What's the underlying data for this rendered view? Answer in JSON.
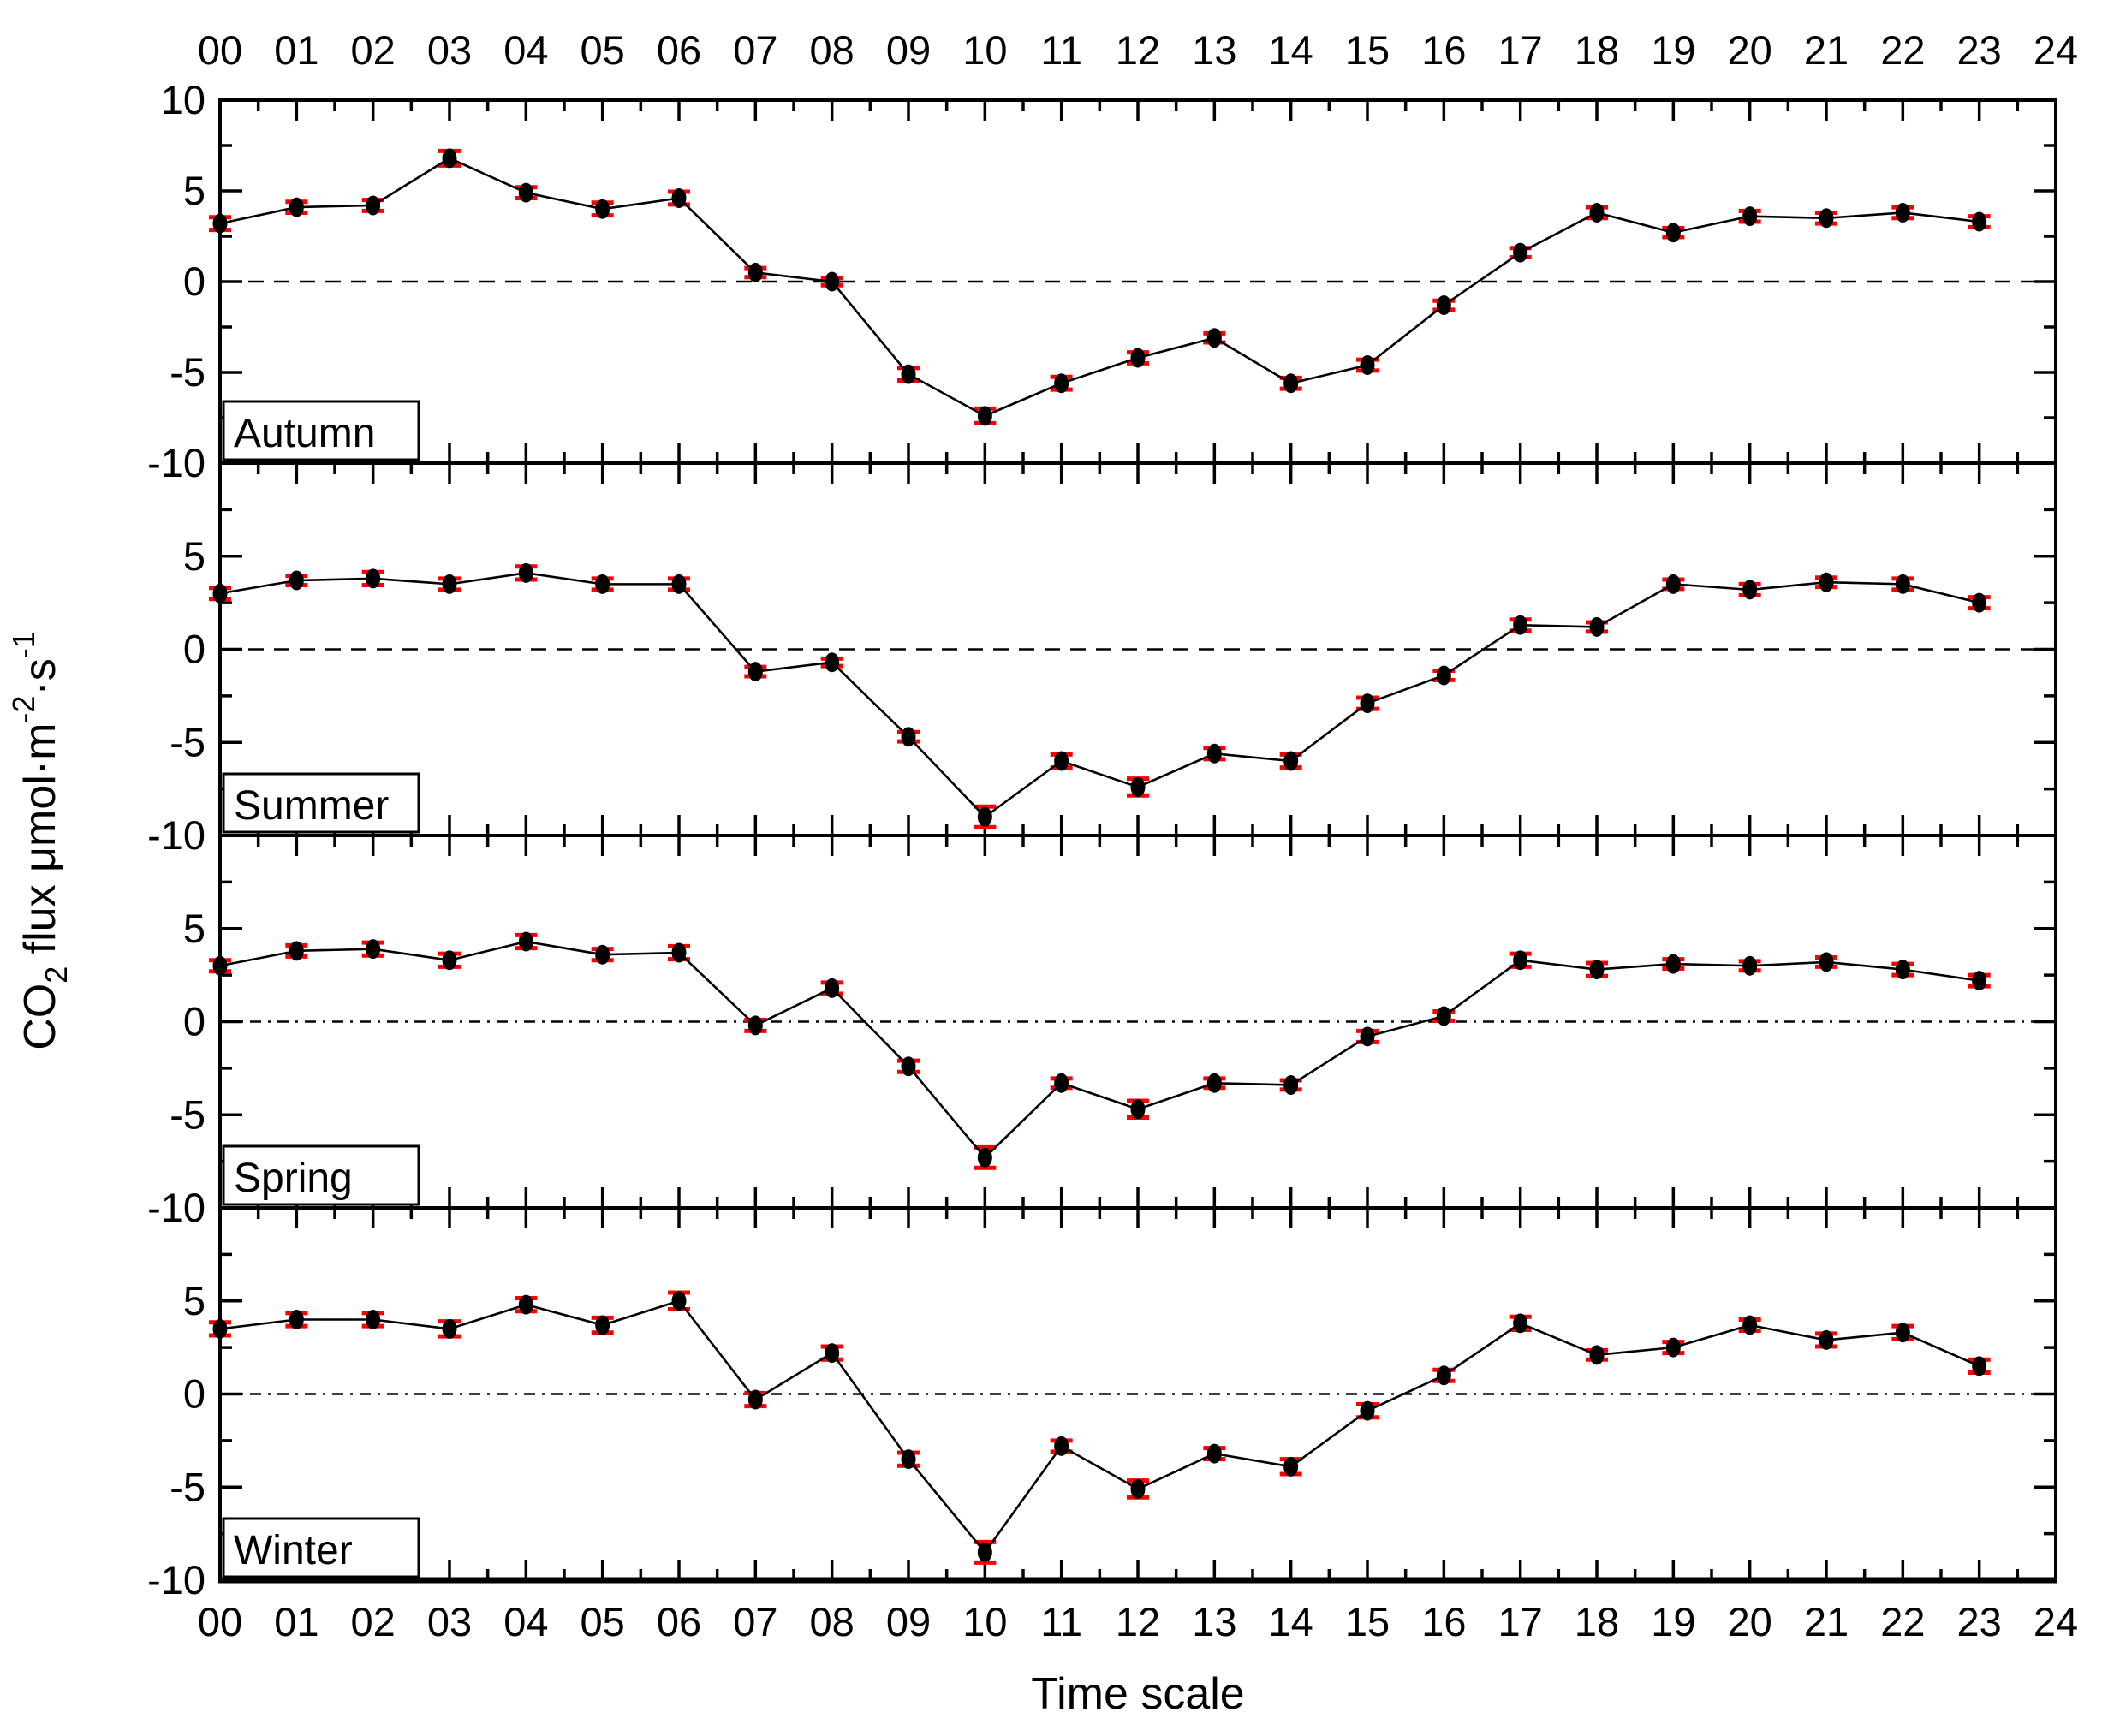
{
  "figure": {
    "x_axis_title": "Time scale",
    "y_axis_title": "CO2 flux μmol·m-2·s-1",
    "y_axis_title_parts": [
      {
        "text": "CO",
        "script": "none"
      },
      {
        "text": "2",
        "script": "sub"
      },
      {
        "text": " flux μmol·m",
        "script": "none"
      },
      {
        "text": "-2",
        "script": "sup"
      },
      {
        "text": "·s",
        "script": "none"
      },
      {
        "text": "-1",
        "script": "sup"
      }
    ],
    "hour_labels": [
      "00",
      "01",
      "02",
      "03",
      "04",
      "05",
      "06",
      "07",
      "08",
      "09",
      "10",
      "11",
      "12",
      "13",
      "14",
      "15",
      "16",
      "17",
      "18",
      "19",
      "20",
      "21",
      "22",
      "23",
      "24"
    ],
    "y_major_tick_labels": [
      "10",
      "5",
      "0",
      "-5",
      "-10"
    ],
    "colors": {
      "line": "#000000",
      "marker": "#000000",
      "error_bar": "#ff0000",
      "frame": "#000000",
      "background": "#ffffff",
      "label_box_fill": "#ffffff"
    }
  },
  "chart_data": [
    {
      "type": "line",
      "name": "Autumn",
      "x": [
        0,
        1,
        2,
        3,
        4,
        5,
        6,
        7,
        8,
        9,
        10,
        11,
        12,
        13,
        14,
        15,
        16,
        17,
        18,
        19,
        20,
        21,
        22,
        23
      ],
      "values": [
        3.2,
        4.1,
        4.2,
        6.8,
        4.9,
        4.0,
        4.6,
        0.5,
        0.0,
        -5.1,
        -7.4,
        -5.6,
        -4.2,
        -3.1,
        -5.6,
        -4.6,
        -1.3,
        1.6,
        3.8,
        2.7,
        3.6,
        3.5,
        3.8,
        3.3
      ],
      "errors": [
        0.35,
        0.3,
        0.3,
        0.4,
        0.3,
        0.35,
        0.35,
        0.25,
        0.2,
        0.35,
        0.4,
        0.35,
        0.3,
        0.25,
        0.3,
        0.3,
        0.25,
        0.25,
        0.3,
        0.25,
        0.3,
        0.3,
        0.3,
        0.3
      ],
      "zero_line_style": "dashed",
      "ylim": [
        -10,
        10
      ],
      "xlim": [
        0,
        24
      ],
      "y_major_step": 5,
      "y_minor_step": 2.5,
      "x_major_step": 1,
      "x_minor_step": 0.5,
      "grid": false
    },
    {
      "type": "line",
      "name": "Summer",
      "x": [
        0,
        1,
        2,
        3,
        4,
        5,
        6,
        7,
        8,
        9,
        10,
        11,
        12,
        13,
        14,
        15,
        16,
        17,
        18,
        19,
        20,
        21,
        22,
        23
      ],
      "values": [
        3.0,
        3.7,
        3.8,
        3.5,
        4.1,
        3.5,
        3.5,
        -1.2,
        -0.7,
        -4.7,
        -9.0,
        -6.0,
        -7.4,
        -5.6,
        -6.0,
        -2.9,
        -1.4,
        1.3,
        1.2,
        3.5,
        3.2,
        3.6,
        3.5,
        2.5
      ],
      "errors": [
        0.3,
        0.25,
        0.35,
        0.3,
        0.35,
        0.3,
        0.3,
        0.25,
        0.2,
        0.25,
        0.55,
        0.35,
        0.45,
        0.3,
        0.35,
        0.3,
        0.25,
        0.3,
        0.25,
        0.25,
        0.3,
        0.25,
        0.3,
        0.3
      ],
      "zero_line_style": "dashed",
      "ylim": [
        -10,
        10
      ],
      "xlim": [
        0,
        24
      ],
      "y_major_step": 5,
      "y_minor_step": 2.5,
      "x_major_step": 1,
      "x_minor_step": 0.5,
      "grid": false
    },
    {
      "type": "line",
      "name": "Spring",
      "x": [
        0,
        1,
        2,
        3,
        4,
        5,
        6,
        7,
        8,
        9,
        10,
        11,
        12,
        13,
        14,
        15,
        16,
        17,
        18,
        19,
        20,
        21,
        22,
        23
      ],
      "values": [
        3.0,
        3.8,
        3.9,
        3.3,
        4.3,
        3.6,
        3.7,
        -0.2,
        1.8,
        -2.4,
        -7.3,
        -3.3,
        -4.7,
        -3.3,
        -3.4,
        -0.8,
        0.3,
        3.3,
        2.8,
        3.1,
        3.0,
        3.2,
        2.8,
        2.2
      ],
      "errors": [
        0.3,
        0.3,
        0.35,
        0.35,
        0.35,
        0.3,
        0.35,
        0.3,
        0.3,
        0.3,
        0.55,
        0.25,
        0.45,
        0.25,
        0.25,
        0.3,
        0.25,
        0.35,
        0.35,
        0.25,
        0.25,
        0.25,
        0.3,
        0.3
      ],
      "zero_line_style": "dash-dot",
      "ylim": [
        -10,
        10
      ],
      "xlim": [
        0,
        24
      ],
      "y_major_step": 5,
      "y_minor_step": 2.5,
      "x_major_step": 1,
      "x_minor_step": 0.5,
      "grid": false
    },
    {
      "type": "line",
      "name": "Winter",
      "x": [
        0,
        1,
        2,
        3,
        4,
        5,
        6,
        7,
        8,
        9,
        10,
        11,
        12,
        13,
        14,
        15,
        16,
        17,
        18,
        19,
        20,
        21,
        22,
        23
      ],
      "values": [
        3.5,
        4.0,
        4.0,
        3.5,
        4.8,
        3.7,
        5.0,
        -0.3,
        2.2,
        -3.5,
        -8.5,
        -2.8,
        -5.1,
        -3.2,
        -3.9,
        -0.9,
        1.0,
        3.8,
        2.1,
        2.5,
        3.7,
        2.9,
        3.3,
        1.5
      ],
      "errors": [
        0.35,
        0.35,
        0.35,
        0.4,
        0.35,
        0.4,
        0.45,
        0.35,
        0.35,
        0.35,
        0.55,
        0.3,
        0.45,
        0.3,
        0.4,
        0.35,
        0.3,
        0.35,
        0.25,
        0.3,
        0.3,
        0.35,
        0.35,
        0.35
      ],
      "zero_line_style": "dash-dot",
      "ylim": [
        -10,
        10
      ],
      "xlim": [
        0,
        24
      ],
      "y_major_step": 5,
      "y_minor_step": 2.5,
      "x_major_step": 1,
      "x_minor_step": 0.5,
      "grid": false
    }
  ]
}
